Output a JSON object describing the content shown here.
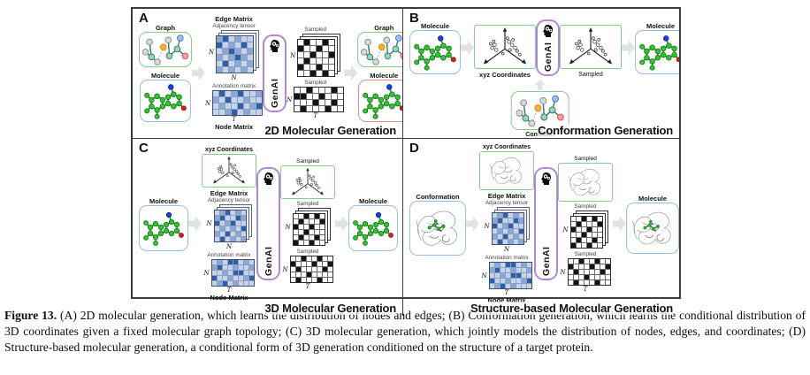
{
  "caption": {
    "label": "Figure 13.",
    "text": "(A) 2D molecular generation, which learns the distribution of nodes and edges; (B) Conformation generation, which learns the conditional distribution of 3D coordinates given a fixed molecular graph topology; (C) 3D molecular generation, which jointly models the distribution of nodes, edges, and coordinates; (D) Structure-based molecular generation, a conditional form of 3D generation conditioned on the structure of a target protein."
  },
  "labels": {
    "graph": "Graph",
    "molecule": "Molecule",
    "conformation": "Conformation",
    "condition": "Condition",
    "edge_matrix": "Edge Matrix",
    "adjacency_tensor": "Adjacency tensor",
    "annotation_matrix": "Annotation matrix",
    "node_matrix": "Node Matrix",
    "sampled": "Sampled",
    "xyz_coordinates": "xyz Coordinates",
    "genai": "GenAI",
    "dim_n": "N",
    "dim_t": "T"
  },
  "panels": {
    "a": {
      "letter": "A",
      "title": "2D Molecular Generation"
    },
    "b": {
      "letter": "B",
      "title": "Conformation Generation"
    },
    "c": {
      "letter": "C",
      "title": "3D Molecular Generation"
    },
    "d": {
      "letter": "D",
      "title": "Structure-based Molecular Generation"
    }
  },
  "colors": {
    "graph_box_border": "#8cc98c",
    "molecule_box_border": "#99bfe8",
    "generated_molecule_box_border": "#ef8686",
    "genai_box_border": "#b286d8",
    "arrow": "#e2e2e2",
    "matrix_dark_blue": "#2f5fa8"
  },
  "palettes": {
    "blue": [
      "#edf1f9",
      "#c5d3ec",
      "#89a8d8",
      "#2f5fa8"
    ],
    "bw": [
      "#ffffff",
      "#141414"
    ]
  },
  "matrices": {
    "adjacency_a": [
      [
        2,
        3,
        1,
        2,
        1,
        1
      ],
      [
        3,
        1,
        2,
        1,
        3,
        1
      ],
      [
        1,
        2,
        3,
        2,
        1,
        2
      ],
      [
        2,
        1,
        2,
        3,
        2,
        1
      ],
      [
        1,
        3,
        1,
        2,
        1,
        2
      ],
      [
        2,
        1,
        2,
        1,
        2,
        1
      ]
    ],
    "annotation_a": [
      [
        1,
        3,
        1,
        2,
        3,
        1,
        1,
        2
      ],
      [
        2,
        1,
        3,
        1,
        1,
        2,
        1,
        1
      ],
      [
        1,
        2,
        1,
        1,
        3,
        1,
        2,
        3
      ],
      [
        1,
        1,
        2,
        3,
        1,
        2,
        1,
        1
      ]
    ],
    "sampled_adjacency_a": [
      [
        0,
        1,
        0,
        0,
        1,
        0
      ],
      [
        1,
        0,
        0,
        1,
        0,
        0
      ],
      [
        0,
        0,
        1,
        0,
        0,
        1
      ],
      [
        0,
        1,
        0,
        0,
        0,
        0
      ],
      [
        1,
        0,
        0,
        1,
        0,
        0
      ],
      [
        0,
        0,
        1,
        0,
        1,
        0
      ]
    ],
    "sampled_annotation_a": [
      [
        0,
        0,
        1,
        0,
        0,
        0,
        1,
        0
      ],
      [
        1,
        1,
        0,
        0,
        1,
        0,
        0,
        0
      ],
      [
        0,
        0,
        0,
        1,
        0,
        0,
        1,
        0
      ],
      [
        0,
        1,
        0,
        0,
        0,
        1,
        0,
        0
      ]
    ],
    "adjacency_cd": [
      [
        1,
        2,
        3,
        1,
        2,
        1
      ],
      [
        2,
        3,
        1,
        1,
        3,
        2
      ],
      [
        3,
        1,
        2,
        3,
        1,
        1
      ],
      [
        1,
        2,
        1,
        2,
        1,
        3
      ],
      [
        2,
        1,
        3,
        1,
        2,
        1
      ],
      [
        1,
        3,
        1,
        2,
        1,
        2
      ]
    ],
    "annotation_cd": [
      [
        1,
        2,
        1,
        3,
        3,
        1,
        2,
        1
      ],
      [
        2,
        3,
        1,
        1,
        2,
        1,
        1,
        2
      ],
      [
        1,
        1,
        2,
        1,
        3,
        3,
        1,
        1
      ],
      [
        3,
        1,
        1,
        2,
        1,
        1,
        2,
        3
      ],
      [
        1,
        2,
        3,
        1,
        2,
        1,
        1,
        1
      ]
    ],
    "sampled_adjacency_cd": [
      [
        0,
        0,
        1,
        0,
        1,
        0
      ],
      [
        0,
        1,
        0,
        0,
        0,
        1
      ],
      [
        1,
        0,
        0,
        1,
        0,
        0
      ],
      [
        0,
        0,
        1,
        0,
        0,
        0
      ],
      [
        0,
        1,
        0,
        0,
        1,
        0
      ],
      [
        1,
        0,
        0,
        1,
        0,
        0
      ]
    ],
    "sampled_annotation_cd": [
      [
        0,
        0,
        1,
        0,
        0,
        1,
        0,
        0
      ],
      [
        1,
        0,
        0,
        0,
        1,
        0,
        0,
        1
      ],
      [
        0,
        1,
        0,
        0,
        0,
        0,
        1,
        0
      ],
      [
        0,
        0,
        0,
        1,
        0,
        0,
        0,
        0
      ],
      [
        0,
        1,
        0,
        0,
        0,
        1,
        0,
        0
      ]
    ]
  }
}
